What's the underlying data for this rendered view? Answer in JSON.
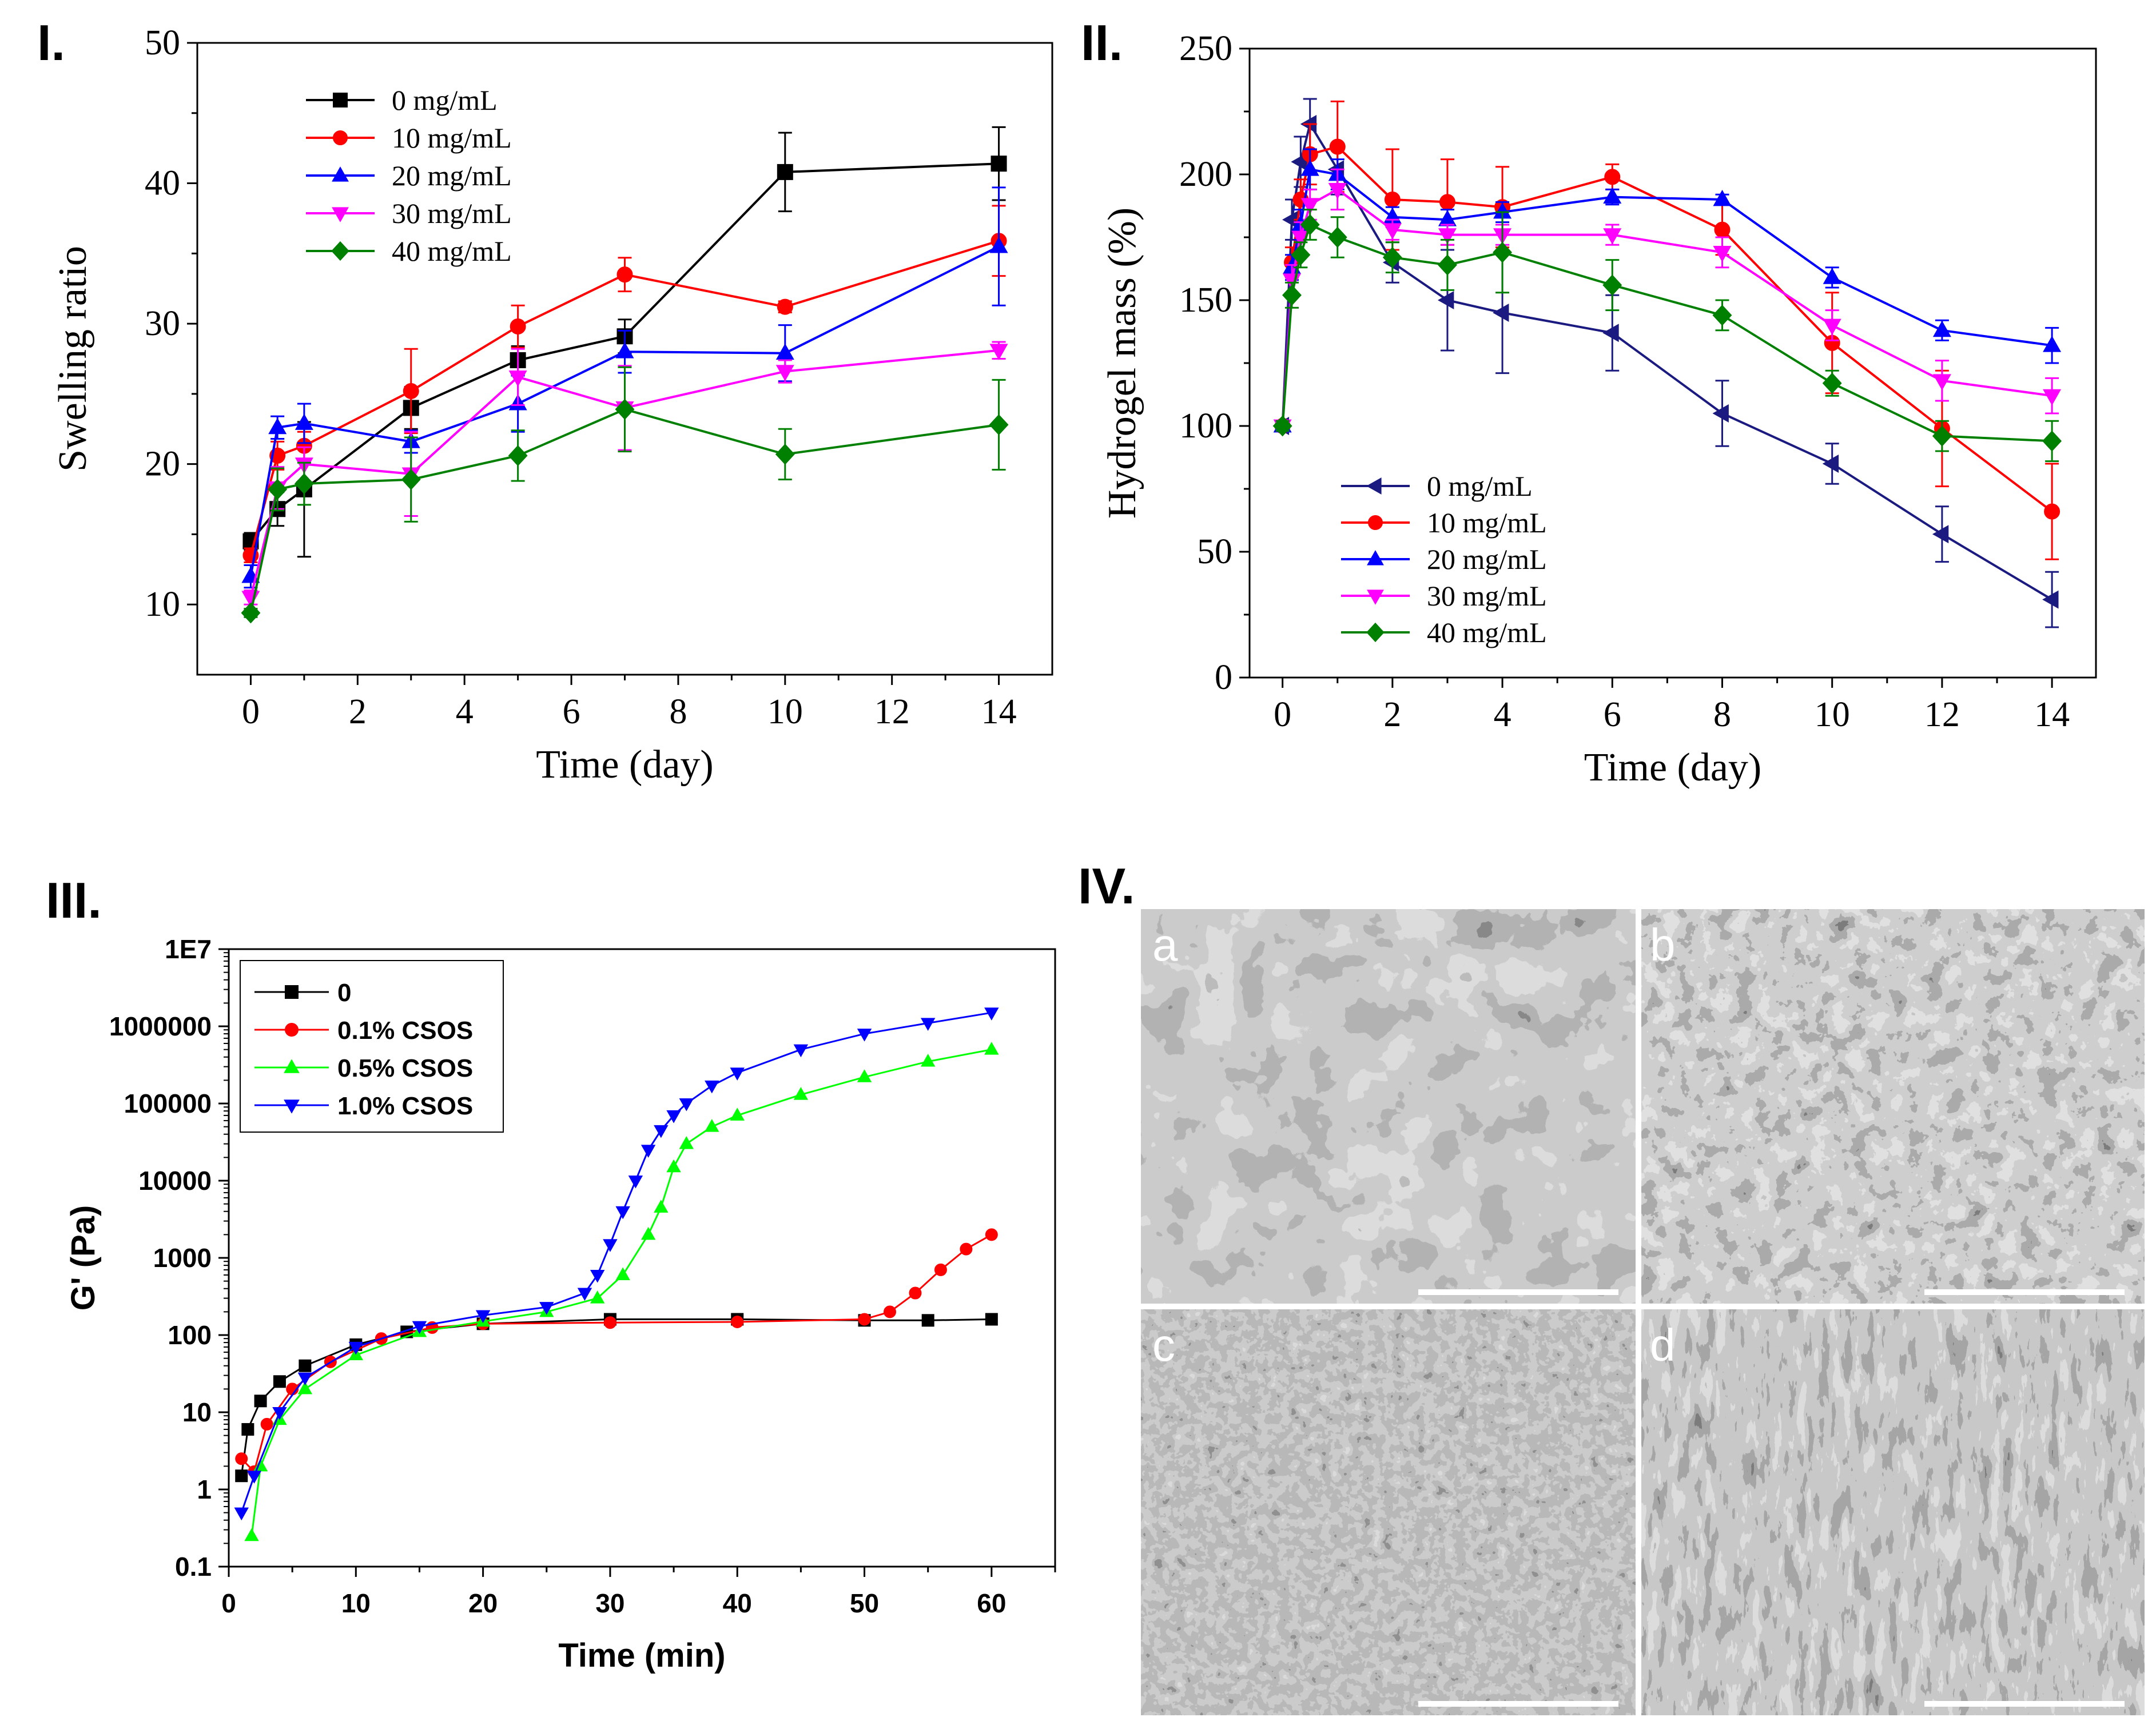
{
  "panel_labels": {
    "p1": "I.",
    "p2": "II.",
    "p3": "III.",
    "p4": "IV."
  },
  "sem": {
    "labels": [
      "a",
      "b",
      "c",
      "d"
    ]
  },
  "chart_data": [
    {
      "type": "line",
      "xlabel": "Time (day)",
      "ylabel": "Swelling ratio",
      "xlim": [
        -1,
        15
      ],
      "ylim": [
        5,
        50
      ],
      "xticks": [
        0,
        2,
        4,
        6,
        8,
        10,
        12,
        14
      ],
      "yticks": [
        10,
        20,
        30,
        40,
        50
      ],
      "legend": "top-left",
      "error_bars": true,
      "series": [
        {
          "name": "0 mg/mL",
          "color": "#000000",
          "marker": "square",
          "x": [
            0,
            0.5,
            1,
            3,
            5,
            7,
            10,
            14
          ],
          "y": [
            14.5,
            16.8,
            18.2,
            24.0,
            27.4,
            29.1,
            40.8,
            41.4
          ],
          "err": [
            0.6,
            1.2,
            4.8,
            1.5,
            1.0,
            1.2,
            2.8,
            2.6
          ]
        },
        {
          "name": "10 mg/mL",
          "color": "#ff0000",
          "marker": "circle",
          "x": [
            0,
            0.5,
            1,
            3,
            5,
            7,
            10,
            14
          ],
          "y": [
            13.5,
            20.6,
            21.3,
            25.2,
            29.8,
            33.5,
            31.2,
            35.9
          ],
          "err": [
            0.5,
            1.0,
            1.0,
            3.0,
            1.5,
            1.2,
            0.4,
            2.5
          ]
        },
        {
          "name": "20 mg/mL",
          "color": "#0000ff",
          "marker": "triangle-up",
          "x": [
            0,
            0.5,
            1,
            3,
            5,
            7,
            10,
            14
          ],
          "y": [
            12.0,
            22.6,
            22.9,
            21.6,
            24.3,
            28.0,
            27.9,
            35.5
          ],
          "err": [
            0.8,
            0.8,
            1.4,
            0.8,
            2.0,
            1.5,
            2.0,
            4.2
          ]
        },
        {
          "name": "30 mg/mL",
          "color": "#ff00ff",
          "marker": "triangle-down",
          "x": [
            0,
            0.5,
            1,
            3,
            5,
            7,
            10,
            14
          ],
          "y": [
            10.5,
            18.3,
            20.0,
            19.3,
            26.2,
            24.0,
            26.6,
            28.1
          ],
          "err": [
            0.5,
            1.5,
            1.2,
            3.0,
            2.0,
            3.0,
            0.8,
            0.6
          ]
        },
        {
          "name": "40 mg/mL",
          "color": "#008000",
          "marker": "diamond",
          "x": [
            0,
            0.5,
            1,
            3,
            5,
            7,
            10,
            14
          ],
          "y": [
            9.4,
            18.2,
            18.6,
            18.9,
            20.6,
            23.9,
            20.7,
            22.8
          ],
          "err": [
            0.3,
            1.5,
            1.5,
            3.0,
            1.8,
            3.0,
            1.8,
            3.2
          ]
        }
      ]
    },
    {
      "type": "line",
      "xlabel": "Time (day)",
      "ylabel": "Hydrogel mass (%)",
      "xlim": [
        -0.6,
        14.8
      ],
      "ylim": [
        0,
        250
      ],
      "xticks": [
        0,
        2,
        4,
        6,
        8,
        10,
        12,
        14
      ],
      "yticks": [
        0,
        50,
        100,
        150,
        200,
        250
      ],
      "legend": "bottom-left",
      "error_bars": true,
      "series": [
        {
          "name": "0 mg/mL",
          "color": "#1a1a80",
          "marker": "triangle-left",
          "x": [
            0,
            0.17,
            0.33,
            0.5,
            1,
            2,
            3,
            4,
            6,
            8,
            10,
            12,
            14
          ],
          "y": [
            100,
            182,
            205,
            220,
            202,
            165,
            150,
            145,
            137,
            105,
            85,
            57,
            31
          ],
          "err": [
            2,
            8,
            10,
            10,
            10,
            8,
            20,
            24,
            15,
            13,
            8,
            11,
            11
          ]
        },
        {
          "name": "10 mg/mL",
          "color": "#ff0000",
          "marker": "circle",
          "x": [
            0,
            0.17,
            0.33,
            0.5,
            1,
            2,
            3,
            4,
            6,
            8,
            10,
            12,
            14
          ],
          "y": [
            100,
            165,
            190,
            208,
            211,
            190,
            189,
            187,
            199,
            178,
            133,
            99,
            66
          ],
          "err": [
            2,
            6,
            8,
            12,
            18,
            20,
            17,
            16,
            5,
            10,
            20,
            23,
            19
          ]
        },
        {
          "name": "20 mg/mL",
          "color": "#0000ff",
          "marker": "triangle-up",
          "x": [
            0,
            0.17,
            0.33,
            0.5,
            1,
            2,
            3,
            4,
            6,
            8,
            10,
            12,
            14
          ],
          "y": [
            100,
            163,
            180,
            202,
            200,
            183,
            182,
            185,
            191,
            190,
            159,
            138,
            132
          ],
          "err": [
            2,
            5,
            6,
            8,
            6,
            4,
            4,
            4,
            3,
            2,
            4,
            4,
            7
          ]
        },
        {
          "name": "30 mg/mL",
          "color": "#ff00ff",
          "marker": "triangle-down",
          "x": [
            0,
            0.17,
            0.33,
            0.5,
            1,
            2,
            3,
            4,
            6,
            8,
            10,
            12,
            14
          ],
          "y": [
            100,
            158,
            175,
            188,
            194,
            178,
            176,
            176,
            176,
            169,
            140,
            118,
            112
          ],
          "err": [
            2,
            6,
            6,
            6,
            8,
            4,
            4,
            4,
            4,
            6,
            6,
            8,
            7
          ]
        },
        {
          "name": "40 mg/mL",
          "color": "#008000",
          "marker": "diamond",
          "x": [
            0,
            0.17,
            0.33,
            0.5,
            1,
            2,
            3,
            4,
            6,
            8,
            10,
            12,
            14
          ],
          "y": [
            100,
            152,
            168,
            180,
            175,
            167,
            164,
            169,
            156,
            144,
            117,
            96,
            94
          ],
          "err": [
            2,
            5,
            5,
            6,
            8,
            6,
            10,
            16,
            10,
            6,
            5,
            6,
            8
          ]
        }
      ]
    },
    {
      "type": "scatter",
      "xlabel": "Time (min)",
      "ylabel": "G' (Pa)",
      "xlim": [
        0,
        65
      ],
      "ylim": [
        0.1,
        10000000
      ],
      "log_y": true,
      "xticks": [
        0,
        10,
        20,
        30,
        40,
        50,
        60
      ],
      "ytick_labels": [
        "0.1",
        "1",
        "10",
        "100",
        "1000",
        "10000",
        "100000",
        "1000000",
        "1E7"
      ],
      "legend": "top-left",
      "series": [
        {
          "name": "0",
          "color": "#000000",
          "marker": "square",
          "x": [
            1,
            1.5,
            2.5,
            4,
            6,
            10,
            14,
            20,
            30,
            40,
            50,
            55,
            60
          ],
          "y": [
            1.5,
            6,
            14,
            25,
            40,
            75,
            110,
            140,
            160,
            160,
            155,
            155,
            160
          ]
        },
        {
          "name": "0.1% CSOS",
          "color": "#ff0000",
          "marker": "circle",
          "x": [
            1,
            2,
            3,
            5,
            8,
            12,
            16,
            20,
            30,
            40,
            50,
            52,
            54,
            56,
            58,
            60
          ],
          "y": [
            2.5,
            1.7,
            7,
            20,
            45,
            90,
            125,
            140,
            145,
            148,
            160,
            200,
            350,
            700,
            1300,
            2000
          ]
        },
        {
          "name": "0.5% CSOS",
          "color": "#00ff00",
          "marker": "triangle-up",
          "x": [
            1.8,
            2.5,
            4,
            6,
            10,
            15,
            20,
            25,
            29,
            31,
            33,
            34,
            35,
            36,
            38,
            40,
            45,
            50,
            55,
            60
          ],
          "y": [
            0.25,
            2,
            8,
            20,
            55,
            110,
            150,
            200,
            300,
            600,
            2000,
            4500,
            15000,
            30000,
            50000,
            70000,
            130000,
            220000,
            350000,
            500000
          ]
        },
        {
          "name": "1.0% CSOS",
          "color": "#0000ff",
          "marker": "triangle-down",
          "x": [
            1,
            2,
            4,
            6,
            10,
            15,
            20,
            25,
            28,
            29,
            30,
            31,
            32,
            33,
            34,
            35,
            36,
            38,
            40,
            45,
            50,
            55,
            60
          ],
          "y": [
            0.5,
            1.5,
            10,
            28,
            70,
            130,
            180,
            230,
            350,
            600,
            1500,
            4000,
            10000,
            25000,
            45000,
            70000,
            100000,
            170000,
            250000,
            500000,
            800000,
            1100000,
            1500000
          ]
        }
      ]
    }
  ]
}
